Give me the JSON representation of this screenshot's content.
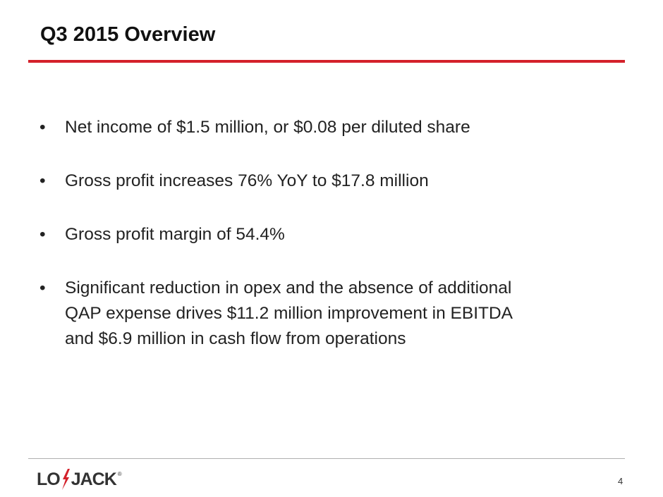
{
  "header": {
    "title": "Q3 2015 Overview"
  },
  "bullets": [
    {
      "lines": [
        "Net income of $1.5 million, or $0.08 per diluted share"
      ]
    },
    {
      "lines": [
        "Gross profit increases 76% YoY to $17.8 million"
      ]
    },
    {
      "lines": [
        "Gross profit margin of 54.4%"
      ]
    },
    {
      "lines": [
        "Significant reduction in opex and the absence of additional",
        "QAP expense drives $11.2 million improvement in EBITDA",
        "and $6.9 million in cash flow from operations"
      ]
    }
  ],
  "footer": {
    "logo": {
      "left": "LO",
      "right": "JACK",
      "mark": "®"
    },
    "page_number": "4"
  }
}
